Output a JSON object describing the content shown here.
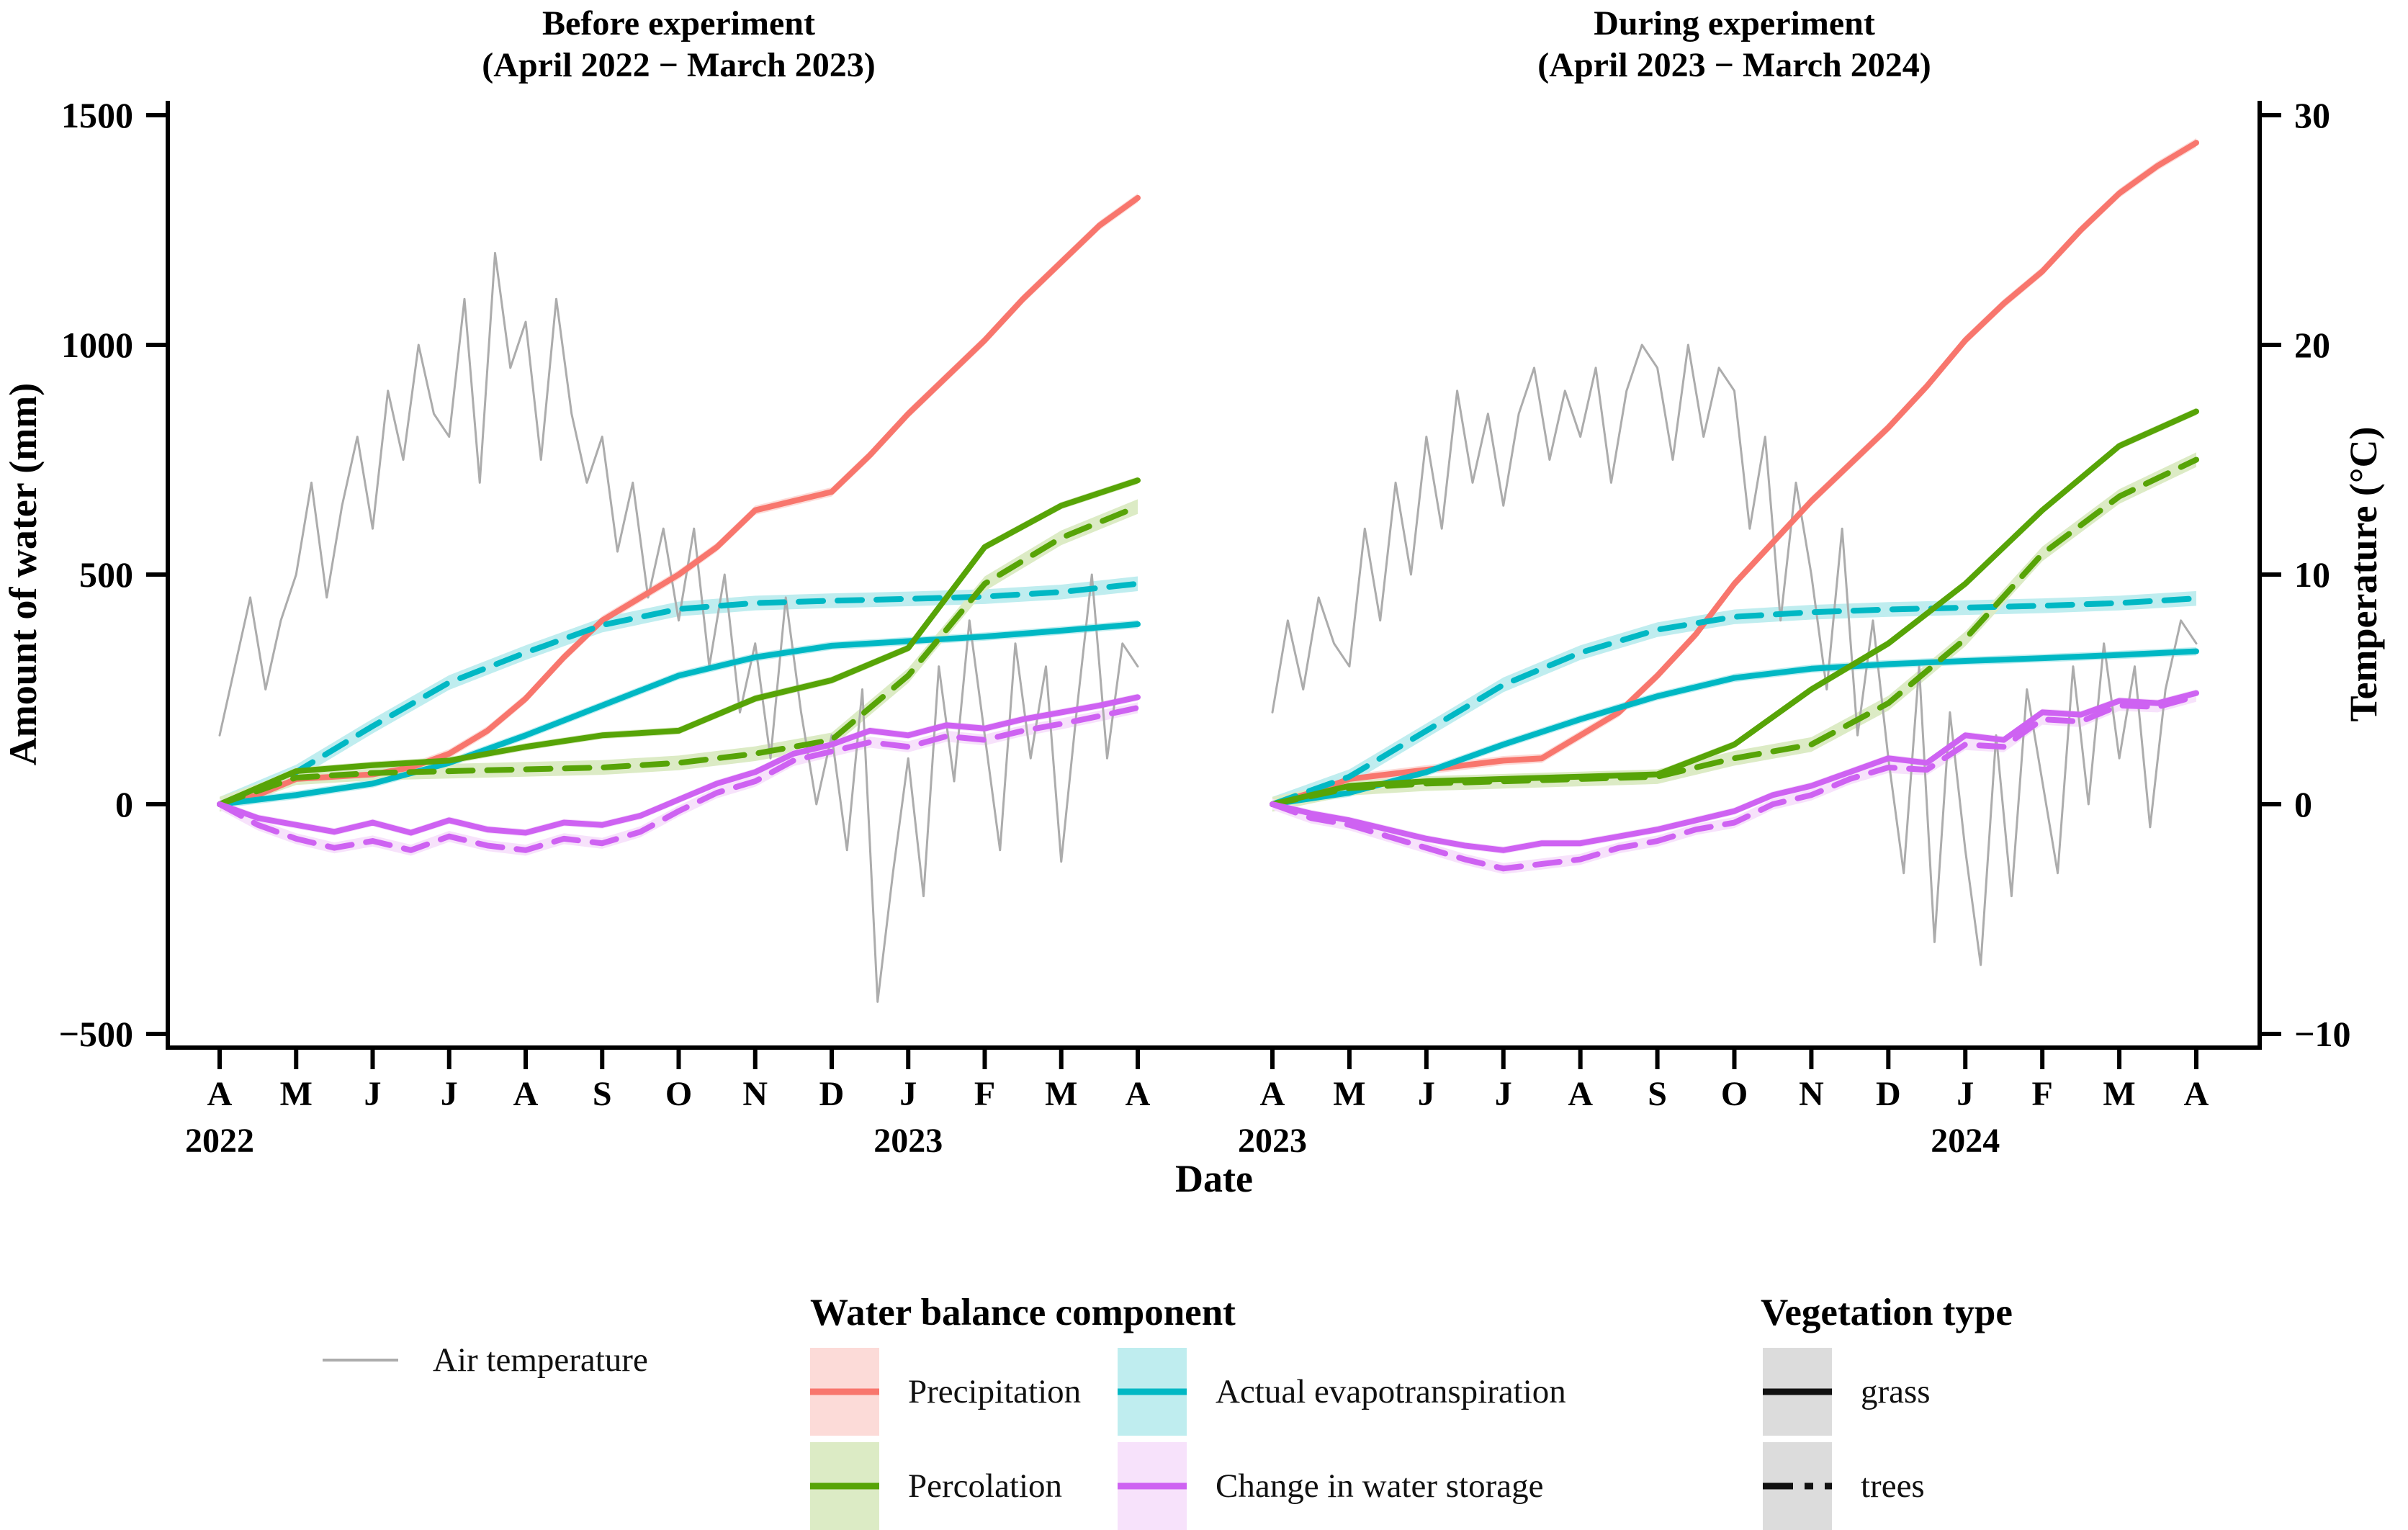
{
  "colors": {
    "precipitation": "#F8766D",
    "percolation": "#57A407",
    "aet": "#00B8C4",
    "storage": "#CE62F2",
    "temperature": "#ACACAC",
    "axis": "#000000",
    "ribbon_precipitation": "#FCDBD8",
    "ribbon_percolation": "#DCEBC5",
    "ribbon_aet": "#BFEDEF",
    "ribbon_storage": "#F7E2FB",
    "ribbon_vegetation": "#DCDCDC"
  },
  "legend": {
    "air_temperature": "Air temperature",
    "water_title": "Water balance component",
    "water_items": [
      {
        "label": "Precipitation",
        "key": "precipitation"
      },
      {
        "label": "Percolation",
        "key": "percolation"
      },
      {
        "label": "Actual evapotranspiration",
        "key": "aet"
      },
      {
        "label": "Change in water storage",
        "key": "storage"
      }
    ],
    "vegetation_title": "Vegetation type",
    "vegetation_items": [
      {
        "label": "grass",
        "style": "solid"
      },
      {
        "label": "trees",
        "style": "dash-dot"
      }
    ]
  },
  "chart_data": {
    "type": "line",
    "x_axis": {
      "label": "Date",
      "months": [
        "A",
        "M",
        "J",
        "J",
        "A",
        "S",
        "O",
        "N",
        "D",
        "J",
        "F",
        "M",
        "A"
      ]
    },
    "y_left": {
      "label": "Amount of water (mm)",
      "ticks": [
        1500,
        1000,
        500,
        0,
        -500
      ],
      "range": [
        -500,
        1500
      ]
    },
    "y_right": {
      "label": "Temperature (°C)",
      "ticks": [
        30,
        20,
        10,
        0,
        -10
      ],
      "range": [
        -10,
        30
      ],
      "mm_per_degree": 50
    },
    "panels": [
      {
        "id": "before",
        "title_line1": "Before experiment",
        "title_line2": "(April 2022 − March 2023)",
        "years": [
          {
            "label": "2022",
            "month": 0
          },
          {
            "label": "2023",
            "month": 9
          }
        ],
        "series": [
          {
            "name": "Air temperature",
            "key": "temperature",
            "vegetation": null,
            "dash": false,
            "band_mm": 0,
            "unit": "C",
            "values": [
              3,
              6,
              9,
              5,
              8,
              10,
              14,
              9,
              13,
              16,
              12,
              18,
              15,
              20,
              17,
              16,
              22,
              14,
              24,
              19,
              21,
              15,
              22,
              17,
              14,
              16,
              11,
              14,
              9,
              12,
              8,
              12,
              6,
              10,
              4,
              7,
              2,
              9,
              4,
              0,
              3,
              -2,
              5,
              -8.6,
              -3,
              2,
              -4,
              6,
              1,
              8,
              3,
              -2,
              7,
              2,
              6,
              -2.5,
              4,
              10,
              2,
              7,
              6
            ]
          },
          {
            "name": "Precipitation",
            "key": "precipitation",
            "vegetation": "grass",
            "dash": false,
            "band_mm": 10,
            "unit": "mm",
            "values": [
              0,
              20,
              55,
              60,
              65,
              80,
              110,
              160,
              230,
              320,
              400,
              450,
              500,
              560,
              640,
              660,
              680,
              760,
              850,
              930,
              1010,
              1100,
              1180,
              1260,
              1320
            ]
          },
          {
            "name": "Actual evapotranspiration (grass)",
            "key": "aet",
            "vegetation": "grass",
            "dash": false,
            "band_mm": 9,
            "unit": "mm",
            "values": [
              0,
              20,
              45,
              90,
              150,
              215,
              280,
              320,
              345,
              355,
              365,
              378,
              392
            ]
          },
          {
            "name": "Actual evapotranspiration (trees)",
            "key": "aet",
            "vegetation": "trees",
            "dash": true,
            "band_mm": 16,
            "unit": "mm",
            "values": [
              0,
              70,
              170,
              265,
              330,
              390,
              425,
              438,
              443,
              447,
              452,
              462,
              480
            ]
          },
          {
            "name": "Percolation (trees)",
            "key": "percolation",
            "vegetation": "trees",
            "dash": true,
            "band_mm": 16,
            "unit": "mm",
            "values": [
              0,
              58,
              68,
              72,
              76,
              80,
              90,
              110,
              140,
              280,
              480,
              580,
              648
            ]
          },
          {
            "name": "Percolation (grass)",
            "key": "percolation",
            "vegetation": "grass",
            "dash": false,
            "band_mm": 8,
            "unit": "mm",
            "values": [
              0,
              72,
              85,
              95,
              125,
              150,
              160,
              230,
              270,
              340,
              560,
              650,
              705
            ]
          },
          {
            "name": "Change in water storage (trees)",
            "key": "storage",
            "vegetation": "trees",
            "dash": true,
            "band_mm": 12,
            "unit": "mm",
            "values": [
              0,
              -45,
              -75,
              -95,
              -80,
              -100,
              -70,
              -90,
              -100,
              -75,
              -85,
              -60,
              -15,
              25,
              50,
              95,
              115,
              135,
              125,
              148,
              140,
              160,
              175,
              192,
              210
            ]
          },
          {
            "name": "Change in water storage (grass)",
            "key": "storage",
            "vegetation": "grass",
            "dash": false,
            "band_mm": 8,
            "unit": "mm",
            "values": [
              0,
              -30,
              -45,
              -60,
              -40,
              -62,
              -35,
              -55,
              -62,
              -40,
              -45,
              -25,
              10,
              45,
              70,
              110,
              130,
              160,
              150,
              172,
              165,
              185,
              200,
              215,
              233
            ]
          }
        ]
      },
      {
        "id": "during",
        "title_line1": "During experiment",
        "title_line2": "(April 2023 − March 2024)",
        "years": [
          {
            "label": "2023",
            "month": 0
          },
          {
            "label": "2024",
            "month": 9
          }
        ],
        "series": [
          {
            "name": "Air temperature",
            "key": "temperature",
            "vegetation": null,
            "dash": false,
            "band_mm": 0,
            "unit": "C",
            "values": [
              4,
              8,
              5,
              9,
              7,
              6,
              12,
              8,
              14,
              10,
              16,
              12,
              18,
              14,
              17,
              13,
              17,
              19,
              15,
              18,
              16,
              19,
              14,
              18,
              20,
              19,
              15,
              20,
              16,
              19,
              18,
              12,
              16,
              8,
              14,
              10,
              5,
              12,
              3,
              8,
              2,
              -3,
              6,
              -6,
              4,
              -2,
              -7,
              3,
              -4,
              5,
              1,
              -3,
              6,
              0,
              7,
              2,
              6,
              -1,
              5,
              8,
              7
            ]
          },
          {
            "name": "Precipitation",
            "key": "precipitation",
            "vegetation": "grass",
            "dash": false,
            "band_mm": 10,
            "unit": "mm",
            "values": [
              0,
              25,
              55,
              65,
              75,
              85,
              95,
              100,
              150,
              200,
              280,
              370,
              480,
              570,
              660,
              740,
              820,
              910,
              1010,
              1090,
              1160,
              1250,
              1330,
              1390,
              1440
            ]
          },
          {
            "name": "Actual evapotranspiration (grass)",
            "key": "aet",
            "vegetation": "grass",
            "dash": false,
            "band_mm": 9,
            "unit": "mm",
            "values": [
              0,
              25,
              70,
              130,
              185,
              235,
              275,
              295,
              305,
              312,
              318,
              325,
              333
            ]
          },
          {
            "name": "Actual evapotranspiration (trees)",
            "key": "aet",
            "vegetation": "trees",
            "dash": true,
            "band_mm": 16,
            "unit": "mm",
            "values": [
              0,
              60,
              160,
              260,
              330,
              380,
              408,
              418,
              424,
              428,
              432,
              438,
              448
            ]
          },
          {
            "name": "Percolation (trees)",
            "key": "percolation",
            "vegetation": "trees",
            "dash": true,
            "band_mm": 16,
            "unit": "mm",
            "values": [
              0,
              35,
              45,
              50,
              55,
              60,
              100,
              130,
              220,
              360,
              545,
              670,
              750
            ]
          },
          {
            "name": "Percolation (grass)",
            "key": "percolation",
            "vegetation": "grass",
            "dash": false,
            "band_mm": 8,
            "unit": "mm",
            "values": [
              0,
              40,
              50,
              55,
              60,
              65,
              130,
              250,
              350,
              480,
              640,
              780,
              855
            ]
          },
          {
            "name": "Change in water storage (trees)",
            "key": "storage",
            "vegetation": "trees",
            "dash": true,
            "band_mm": 12,
            "unit": "mm",
            "values": [
              0,
              -30,
              -45,
              -70,
              -95,
              -120,
              -140,
              -130,
              -120,
              -95,
              -80,
              -55,
              -40,
              0,
              20,
              55,
              80,
              75,
              130,
              125,
              185,
              180,
              215,
              212,
              235
            ]
          },
          {
            "name": "Change in water storage (grass)",
            "key": "storage",
            "vegetation": "grass",
            "dash": false,
            "band_mm": 8,
            "unit": "mm",
            "values": [
              0,
              -20,
              -35,
              -55,
              -75,
              -90,
              -100,
              -85,
              -85,
              -70,
              -55,
              -35,
              -15,
              20,
              40,
              70,
              100,
              90,
              150,
              140,
              200,
              195,
              225,
              220,
              242
            ]
          }
        ]
      }
    ]
  }
}
